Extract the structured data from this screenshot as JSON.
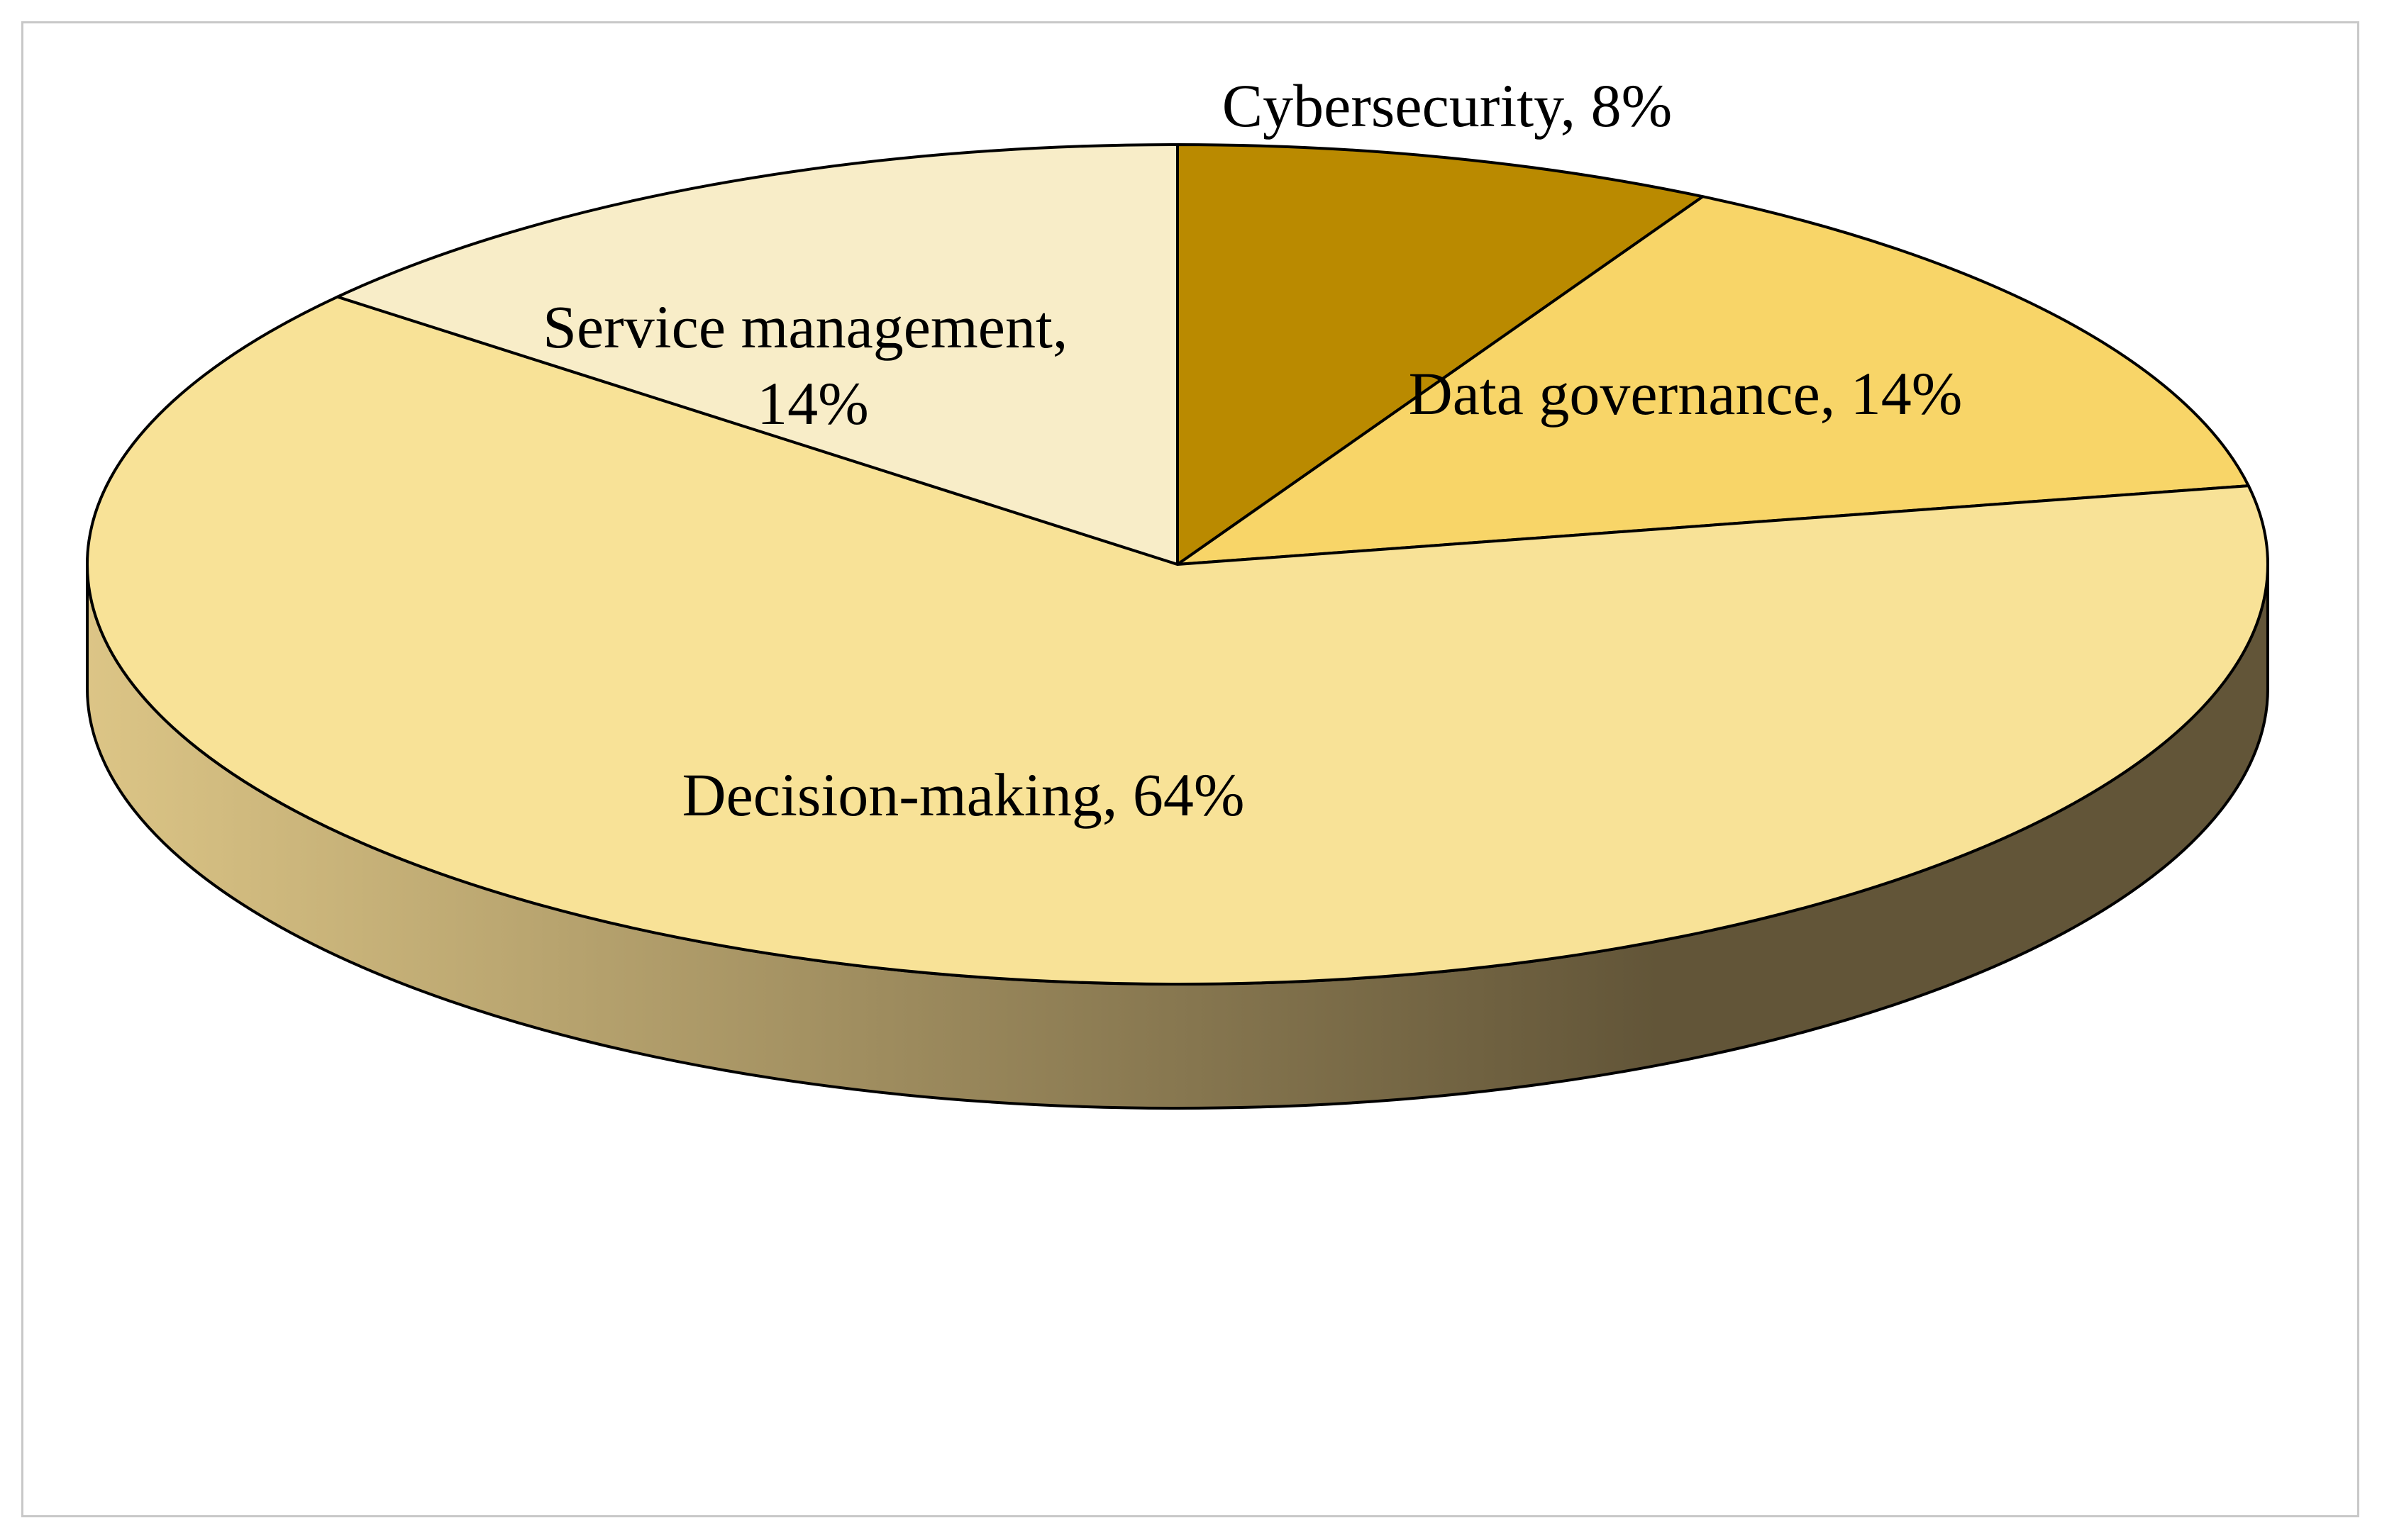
{
  "chart_data": {
    "type": "pie",
    "style": "3d",
    "start_angle": "12 o'clock, clockwise",
    "slices": [
      {
        "label": "Cybersecurity",
        "value": 8,
        "display": "8%",
        "color": "#BA8A00"
      },
      {
        "label": "Data governance",
        "value": 14,
        "display": "14%",
        "color": "#F8D568"
      },
      {
        "label": "Decision-making",
        "value": 64,
        "display": "64%",
        "color": "#F8E297"
      },
      {
        "label": "Service management",
        "value": 14,
        "display": "14%",
        "color": "#F8EDC8"
      }
    ],
    "side_gradient": [
      "#DCC586",
      "#625538"
    ],
    "outline_color": "#000000",
    "frame_border_color": "#c8c8c8"
  }
}
